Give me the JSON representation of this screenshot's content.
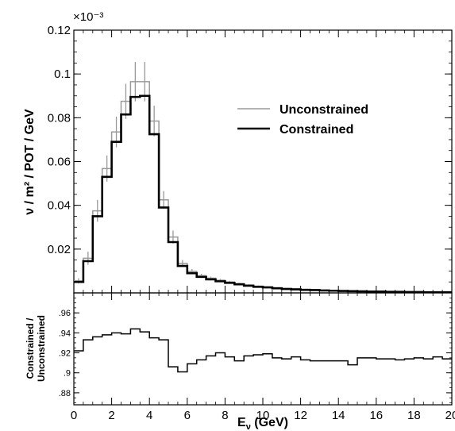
{
  "chart_data": [
    {
      "type": "line",
      "panel": "main",
      "ylabel": "ν / m² / POT / GeV",
      "y_multiplier": "×10⁻³",
      "xlim": [
        0,
        20
      ],
      "ylim": [
        0,
        0.12
      ],
      "x_ticks": [
        0,
        2,
        4,
        6,
        8,
        10,
        12,
        14,
        16,
        18,
        20
      ],
      "y_ticks": [
        0.02,
        0.04,
        0.06,
        0.08,
        0.1,
        0.12
      ],
      "legend_position": "top-right",
      "bin_edges": [
        0,
        0.5,
        1,
        1.5,
        2,
        2.5,
        3,
        3.5,
        4,
        4.5,
        5,
        5.5,
        6,
        6.5,
        7,
        7.5,
        8,
        8.5,
        9,
        9.5,
        10,
        10.5,
        11,
        11.5,
        12,
        12.5,
        13,
        13.5,
        14,
        14.5,
        15,
        15.5,
        16,
        16.5,
        17,
        17.5,
        18,
        18.5,
        19,
        19.5,
        20
      ],
      "series": [
        {
          "name": "Unconstrained",
          "color": "#9a9a9a",
          "style": "thin-gray-step-with-error-bars",
          "values": [
            0.0055,
            0.0158,
            0.0375,
            0.0568,
            0.0735,
            0.0875,
            0.0965,
            0.0965,
            0.0785,
            0.0425,
            0.0255,
            0.0135,
            0.0099,
            0.0079,
            0.0067,
            0.0058,
            0.005,
            0.0043,
            0.0036,
            0.0031,
            0.0027,
            0.0023,
            0.002,
            0.0018,
            0.0016,
            0.0014,
            0.0012,
            0.0011,
            0.001,
            0.0009,
            0.0008,
            0.0007,
            0.0006,
            0.0006,
            0.0005,
            0.0005,
            0.0004,
            0.0004,
            0.0003,
            0.0003
          ],
          "errors": [
            0.0012,
            0.003,
            0.005,
            0.006,
            0.007,
            0.008,
            0.009,
            0.009,
            0.007,
            0.004,
            0.003,
            0.0015,
            0.001,
            0.0008,
            0.0007,
            0.0006,
            0.0005,
            0.0004,
            0.0004,
            0.0003,
            0.0003,
            0.0002,
            0.0002,
            0.0002,
            0.0002,
            0.0001,
            0.0001,
            0.0001,
            0.0001,
            0.0001,
            0.0001,
            0.0001,
            0.0001,
            0.0001,
            0.0001,
            0.0001,
            0.0001,
            0.0001,
            0.0001,
            0.0001
          ]
        },
        {
          "name": "Constrained",
          "color": "#000000",
          "style": "thick-black-step",
          "values": [
            0.005,
            0.0145,
            0.035,
            0.053,
            0.069,
            0.0815,
            0.0895,
            0.09,
            0.0725,
            0.039,
            0.0232,
            0.0123,
            0.009,
            0.0073,
            0.0062,
            0.0053,
            0.0046,
            0.0039,
            0.0033,
            0.0028,
            0.0025,
            0.0021,
            0.0018,
            0.0016,
            0.0014,
            0.0013,
            0.0011,
            0.001,
            0.0009,
            0.0008,
            0.0007,
            0.0006,
            0.0006,
            0.0005,
            0.0005,
            0.0004,
            0.0004,
            0.0003,
            0.0003,
            0.0003
          ]
        }
      ]
    },
    {
      "type": "line",
      "panel": "ratio",
      "xlabel": "E",
      "xlabel_sub": "ν",
      "xlabel_unit": " (GeV)",
      "ylabel_lines": [
        "Constrained /",
        "Unconstrained"
      ],
      "xlim": [
        0,
        20
      ],
      "ylim": [
        0.868,
        0.98
      ],
      "x_ticks": [
        0,
        2,
        4,
        6,
        8,
        10,
        12,
        14,
        16,
        18,
        20
      ],
      "y_ticks": [
        0.88,
        0.9,
        0.92,
        0.94,
        0.96
      ],
      "bin_edges": [
        0,
        0.5,
        1,
        1.5,
        2,
        2.5,
        3,
        3.5,
        4,
        4.5,
        5,
        5.5,
        6,
        6.5,
        7,
        7.5,
        8,
        8.5,
        9,
        9.5,
        10,
        10.5,
        11,
        11.5,
        12,
        12.5,
        13,
        13.5,
        14,
        14.5,
        15,
        15.5,
        16,
        16.5,
        17,
        17.5,
        18,
        18.5,
        19,
        19.5,
        20
      ],
      "series": [
        {
          "name": "",
          "color": "#000000",
          "values": [
            0.922,
            0.933,
            0.936,
            0.938,
            0.94,
            0.939,
            0.944,
            0.941,
            0.935,
            0.933,
            0.906,
            0.901,
            0.909,
            0.913,
            0.917,
            0.92,
            0.916,
            0.912,
            0.917,
            0.918,
            0.919,
            0.915,
            0.914,
            0.916,
            0.913,
            0.912,
            0.912,
            0.912,
            0.912,
            0.908,
            0.915,
            0.915,
            0.914,
            0.914,
            0.913,
            0.914,
            0.915,
            0.914,
            0.916,
            0.914
          ]
        }
      ]
    }
  ]
}
